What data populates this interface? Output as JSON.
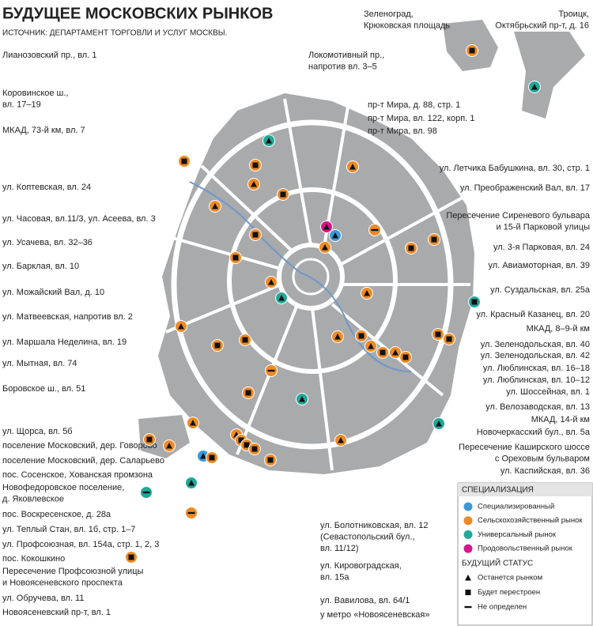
{
  "header": {
    "title": "БУДУЩЕЕ МОСКОВСКИХ РЫНКОВ",
    "source": "ИСТОЧНИК: ДЕПАРТАМЕНТ ТОРГОВЛИ И УСЛУГ МОСКВЫ."
  },
  "labels": {
    "top": [
      [
        "Зеленоград,",
        "Крюковская площадь"
      ],
      [
        "Троицк,",
        "Октябрьский пр-т, д. 16"
      ]
    ],
    "left": [
      [
        "Лианозовский пр., вл. 1"
      ],
      [
        "Коровинское ш.,",
        "вл. 17–19"
      ],
      [
        "МКАД, 73-й км, вл. 7"
      ],
      [
        "ул. Коптевская, вл. 24"
      ],
      [
        "ул. Часовая, вл.11/3, ул. Асеева, вл. 3"
      ],
      [
        "ул. Усачева, вл. 32–36"
      ],
      [
        "ул. Барклая, вл. 10"
      ],
      [
        "ул. Можайский Вал, д. 10"
      ],
      [
        "ул. Матвеевская, напротив вл. 2"
      ],
      [
        "ул. Маршала Неделина, вл. 19"
      ],
      [
        "ул. Мытная, вл. 74"
      ],
      [
        "Боровское ш., вл. 51"
      ],
      [
        "ул. Щорса, вл. 5б"
      ],
      [
        "поселение Московский, дер. Говорово"
      ],
      [
        "поселение Московский, дер. Саларьево"
      ],
      [
        "пос. Сосенское, Хованская промзона"
      ],
      [
        "Новофедоровское поселение,",
        "д. Яковлевское"
      ],
      [
        "пос. Воскресенское, д. 28а"
      ],
      [
        "ул. Теплый Стан, вл. 1б, стр. 1–7"
      ],
      [
        "ул. Профсоюзная, вл. 154а, стр. 1, 2, 3"
      ],
      [
        "пос. Кокошкино"
      ],
      [
        "Пересечение Профсоюзной улицы",
        "и Новоясеневского проспекта"
      ],
      [
        "ул. Обручева, вл. 11"
      ],
      [
        "Новоясеневский пр-т, вл. 1"
      ]
    ],
    "middle": [
      [
        "Локомотивный пр.,",
        "напротив вл. 3–5"
      ],
      [
        "пр-т Мира, д. 88, стр. 1"
      ],
      [
        "пр-т Мира, вл. 122, корп. 1"
      ],
      [
        "пр-т Мира, вл. 98"
      ],
      [
        "ул. Болотниковская, вл. 12",
        "(Севастопольский бул.,",
        "вл. 11/12)"
      ],
      [
        "ул. Кировоградская,",
        "вл. 15а"
      ],
      [
        "ул. Вавилова, вл. 64/1"
      ],
      [
        "у метро «Новоясеневская»"
      ]
    ],
    "right": [
      [
        "ул. Летчика Бабушкина, вл. 30, стр. 1"
      ],
      [
        "ул. Преображенский Вал, вл. 17"
      ],
      [
        "Пересечение Сиреневого бульвара",
        "и 15-й Парковой улицы"
      ],
      [
        "ул. 3-я Парковая, вл. 24"
      ],
      [
        "ул. Авиамоторная, вл. 39"
      ],
      [
        "ул. Суздальская, вл. 25а"
      ],
      [
        "ул. Красный Казанец, вл. 20"
      ],
      [
        "МКАД, 8–9-й км"
      ],
      [
        "ул. Зеленодольская, вл. 40"
      ],
      [
        "ул. Зеленодольская, вл. 42"
      ],
      [
        "ул. Люблинская, вл. 16–18"
      ],
      [
        "ул. Люблинская, вл. 10–12"
      ],
      [
        "ул. Шоссейная, вл. 1"
      ],
      [
        "ул. Велозаводская, вл. 13"
      ],
      [
        "МКАД, 14-й км"
      ],
      [
        "Новочеркасский бул., вл. 5а"
      ],
      [
        "Пересечение Каширского шоссе",
        "с Ореховым бульваром"
      ],
      [
        "ул. Каспийская, вл. 36"
      ]
    ]
  },
  "legend": {
    "title": "СПЕЦИАЛИЗАЦИЯ",
    "items": [
      {
        "label": "Специализированный",
        "color": "#3a9ad9"
      },
      {
        "label": "Сельскохозяйственный рынок",
        "color": "#f08a24"
      },
      {
        "label": "Универсальный рынок",
        "color": "#1fa99a"
      },
      {
        "label": "Продовольственный рынок",
        "color": "#d6168c"
      }
    ],
    "status_title": "БУДУЩИЙ СТАТУС",
    "status_items": [
      "Останется рынком",
      "Будет перестроен",
      "Не определен"
    ]
  }
}
